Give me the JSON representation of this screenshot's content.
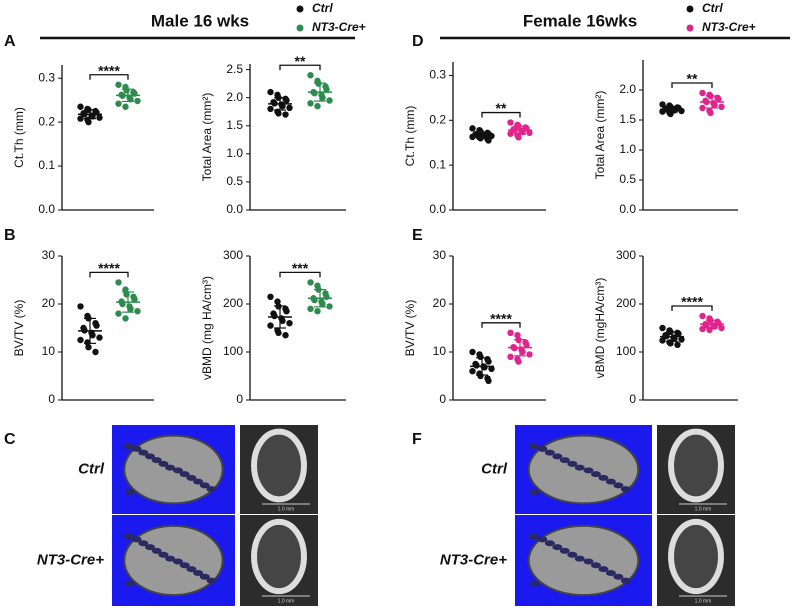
{
  "header": {
    "male_title": "Male 16 wks",
    "female_title": "Female 16wks"
  },
  "panel_labels": [
    "A",
    "B",
    "C",
    "D",
    "E",
    "F"
  ],
  "images": [
    {
      "rows": [
        "Ctrl",
        "NT3-Cre+"
      ],
      "scale_label": "1.0 mm"
    },
    {
      "rows": [
        "Ctrl",
        "NT3-Cre+"
      ],
      "scale_label": "1.0 mm"
    }
  ],
  "chart_data": [
    {
      "type": "strip",
      "y_label": "Ct.Th (mm)",
      "ylim": [
        0,
        0.33
      ],
      "yticks": [
        {
          "value": 0,
          "label": "0.0"
        },
        0.1,
        0.2,
        0.3
      ],
      "significance": "****",
      "series": [
        {
          "name": "Ctrl",
          "color": "#111111",
          "values": [
            0.235,
            0.23,
            0.228,
            0.225,
            0.222,
            0.22,
            0.218,
            0.215,
            0.213,
            0.21,
            0.208,
            0.205,
            0.2
          ],
          "mean": 0.218,
          "sd": 0.01
        },
        {
          "name": "NT3-Cre+",
          "color": "#2e8b4e",
          "values": [
            0.285,
            0.28,
            0.272,
            0.268,
            0.265,
            0.262,
            0.26,
            0.256,
            0.252,
            0.248,
            0.242,
            0.235
          ],
          "mean": 0.261,
          "sd": 0.014
        }
      ]
    },
    {
      "type": "strip",
      "y_label": "Total Area (mm²)",
      "ylim": [
        0,
        2.6
      ],
      "yticks": [
        {
          "value": 0,
          "label": "0.0"
        },
        0.5,
        {
          "value": 1,
          "label": "1.0"
        },
        1.5,
        {
          "value": 2,
          "label": "2.0"
        },
        2.5
      ],
      "significance": "**",
      "series": [
        {
          "name": "Ctrl",
          "color": "#111111",
          "values": [
            2.1,
            2.05,
            2.0,
            1.98,
            1.95,
            1.92,
            1.9,
            1.88,
            1.85,
            1.82,
            1.8,
            1.75,
            1.72,
            1.7
          ],
          "mean": 1.89,
          "sd": 0.11
        },
        {
          "name": "NT3-Cre+",
          "color": "#2e8b4e",
          "values": [
            2.4,
            2.3,
            2.25,
            2.2,
            2.15,
            2.1,
            2.08,
            2.05,
            2.0,
            1.95,
            1.9,
            1.85
          ],
          "mean": 2.1,
          "sd": 0.16
        }
      ]
    },
    {
      "type": "strip",
      "y_label": "BV/TV (%)",
      "ylim": [
        0,
        30
      ],
      "yticks": [
        0,
        10,
        20,
        30
      ],
      "significance": "****",
      "series": [
        {
          "name": "Ctrl",
          "color": "#111111",
          "values": [
            19.5,
            17.5,
            17,
            16,
            15.5,
            15,
            14.5,
            14,
            13.5,
            13,
            12.5,
            12,
            11,
            10
          ],
          "mean": 14.4,
          "sd": 2.6
        },
        {
          "name": "NT3-Cre+",
          "color": "#2e8b4e",
          "values": [
            24.5,
            23,
            22,
            21.5,
            21,
            20.5,
            20,
            19.5,
            19,
            18.5,
            18,
            17
          ],
          "mean": 20.4,
          "sd": 2.1
        }
      ]
    },
    {
      "type": "strip",
      "y_label": "vBMD (mg HA/cm³)",
      "ylim": [
        0,
        300
      ],
      "yticks": [
        0,
        100,
        200,
        300
      ],
      "significance": "***",
      "series": [
        {
          "name": "Ctrl",
          "color": "#111111",
          "values": [
            215,
            205,
            195,
            190,
            185,
            180,
            175,
            170,
            165,
            160,
            155,
            145,
            140,
            135
          ],
          "mean": 173,
          "sd": 23
        },
        {
          "name": "NT3-Cre+",
          "color": "#2e8b4e",
          "values": [
            245,
            238,
            230,
            222,
            215,
            212,
            208,
            205,
            200,
            195,
            190,
            185
          ],
          "mean": 212,
          "sd": 18
        }
      ]
    },
    {
      "type": "strip",
      "y_label": "Ct.Th (mm)",
      "ylim": [
        0,
        0.33
      ],
      "yticks": [
        {
          "value": 0,
          "label": "0.0"
        },
        0.1,
        0.2,
        0.3
      ],
      "significance": "**",
      "series": [
        {
          "name": "Ctrl",
          "color": "#111111",
          "values": [
            0.182,
            0.178,
            0.175,
            0.172,
            0.17,
            0.169,
            0.168,
            0.167,
            0.166,
            0.165,
            0.163,
            0.162,
            0.16,
            0.158,
            0.155
          ],
          "mean": 0.167,
          "sd": 0.007
        },
        {
          "name": "NT3-Cre+",
          "color": "#e0248c",
          "values": [
            0.195,
            0.19,
            0.187,
            0.184,
            0.182,
            0.18,
            0.178,
            0.176,
            0.174,
            0.172,
            0.17,
            0.166,
            0.162
          ],
          "mean": 0.178,
          "sd": 0.009
        }
      ]
    },
    {
      "type": "strip",
      "y_label": "Total Area (mm²)",
      "ylim": [
        0,
        2.5
      ],
      "yticks": [
        {
          "value": 0,
          "label": "0.0"
        },
        0.5,
        {
          "value": 1,
          "label": "1.0"
        },
        1.5,
        {
          "value": 2,
          "label": "2.0"
        }
      ],
      "significance": "**",
      "series": [
        {
          "name": "Ctrl",
          "color": "#111111",
          "values": [
            1.76,
            1.74,
            1.72,
            1.71,
            1.7,
            1.69,
            1.68,
            1.67,
            1.66,
            1.65,
            1.64,
            1.62,
            1.6
          ],
          "mean": 1.68,
          "sd": 0.045
        },
        {
          "name": "NT3-Cre+",
          "color": "#e0248c",
          "values": [
            1.95,
            1.92,
            1.9,
            1.87,
            1.85,
            1.82,
            1.8,
            1.78,
            1.75,
            1.72,
            1.7,
            1.65,
            1.62
          ],
          "mean": 1.8,
          "sd": 0.1
        }
      ]
    },
    {
      "type": "strip",
      "y_label": "BV/TV (%)",
      "ylim": [
        0,
        30
      ],
      "yticks": [
        0,
        10,
        20,
        30
      ],
      "significance": "****",
      "series": [
        {
          "name": "Ctrl",
          "color": "#111111",
          "values": [
            10,
            9.5,
            9,
            8.5,
            8,
            7.5,
            7.2,
            7,
            6.8,
            6.5,
            6,
            5.5,
            5,
            4.5,
            4
          ],
          "mean": 7,
          "sd": 1.8
        },
        {
          "name": "NT3-Cre+",
          "color": "#e0248c",
          "values": [
            14,
            13.5,
            12.5,
            12,
            11.5,
            11,
            10.8,
            10.5,
            10,
            9.5,
            9,
            8.5,
            8
          ],
          "mean": 10.9,
          "sd": 1.7
        }
      ]
    },
    {
      "type": "strip",
      "y_label": "vBMD (mgHA/cm³)",
      "ylim": [
        0,
        300
      ],
      "yticks": [
        0,
        100,
        200,
        300
      ],
      "significance": "****",
      "series": [
        {
          "name": "Ctrl",
          "color": "#111111",
          "values": [
            150,
            145,
            142,
            140,
            138,
            135,
            133,
            130,
            128,
            126,
            124,
            120,
            118,
            115
          ],
          "mean": 132,
          "sd": 10
        },
        {
          "name": "NT3-Cre+",
          "color": "#e0248c",
          "values": [
            175,
            170,
            166,
            163,
            160,
            158,
            156,
            155,
            153,
            150,
            148,
            146
          ],
          "mean": 158,
          "sd": 8
        }
      ]
    }
  ]
}
